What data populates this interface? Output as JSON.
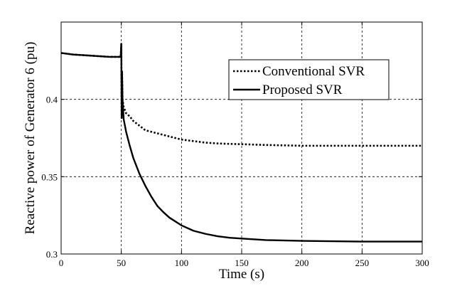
{
  "chart_data": {
    "type": "line",
    "xlabel": "Time (s)",
    "ylabel": "Reactive power of Generator 6 (pu)",
    "xlim": [
      0,
      300
    ],
    "ylim": [
      0.3,
      0.45
    ],
    "xticks": [
      0,
      50,
      100,
      150,
      200,
      250,
      300
    ],
    "yticks": [
      0.3,
      0.35,
      0.4
    ],
    "ytick_labels": [
      "0.3",
      "0.35",
      "0.4"
    ],
    "grid": true,
    "legend_position": "top-right",
    "series": [
      {
        "name": "Conventional SVR",
        "style": "dotted",
        "color": "#000000",
        "x": [
          0,
          10,
          20,
          30,
          40,
          49.5,
          50,
          50.3,
          50.6,
          51,
          52,
          54,
          57,
          60,
          65,
          70,
          80,
          90,
          100,
          110,
          120,
          130,
          140,
          150,
          170,
          200,
          250,
          300
        ],
        "y": [
          0.43,
          0.429,
          0.4285,
          0.428,
          0.4275,
          0.4275,
          0.436,
          0.388,
          0.418,
          0.4,
          0.395,
          0.391,
          0.389,
          0.386,
          0.383,
          0.38,
          0.378,
          0.376,
          0.374,
          0.373,
          0.372,
          0.3715,
          0.3712,
          0.371,
          0.3705,
          0.37,
          0.37,
          0.37
        ]
      },
      {
        "name": "Proposed SVR",
        "style": "solid",
        "color": "#000000",
        "x": [
          0,
          10,
          20,
          30,
          40,
          49.5,
          50,
          50.3,
          50.6,
          51,
          52,
          54,
          57,
          60,
          65,
          70,
          75,
          80,
          85,
          90,
          100,
          110,
          120,
          130,
          140,
          150,
          170,
          200,
          250,
          300
        ],
        "y": [
          0.43,
          0.429,
          0.4285,
          0.428,
          0.4275,
          0.4275,
          0.436,
          0.388,
          0.418,
          0.4,
          0.387,
          0.379,
          0.37,
          0.362,
          0.352,
          0.344,
          0.337,
          0.331,
          0.327,
          0.3235,
          0.3185,
          0.315,
          0.313,
          0.3115,
          0.3105,
          0.31,
          0.309,
          0.3085,
          0.308,
          0.308
        ]
      }
    ]
  }
}
